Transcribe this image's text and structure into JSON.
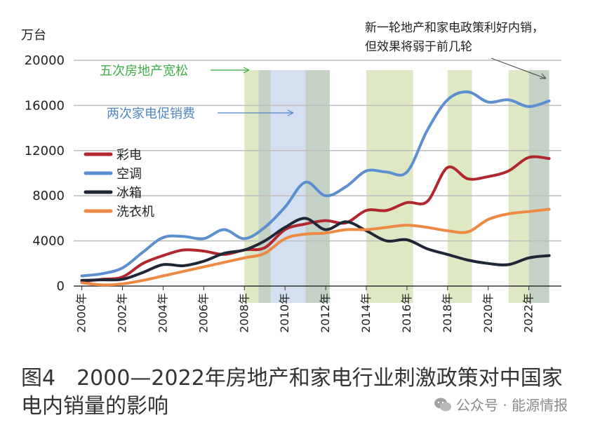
{
  "chart_data": {
    "type": "line",
    "y_unit_label": "万台",
    "ylim": [
      0,
      20000
    ],
    "y_ticks": [
      0,
      4000,
      8000,
      12000,
      16000,
      20000
    ],
    "x_tick_labels": [
      "2000年",
      "2002年",
      "2004年",
      "2006年",
      "2008年",
      "2010年",
      "2012年",
      "2014年",
      "2016年",
      "2018年",
      "2020年",
      "2022年"
    ],
    "x_tick_years": [
      2000,
      2002,
      2004,
      2006,
      2008,
      2010,
      2012,
      2014,
      2016,
      2018,
      2020,
      2022
    ],
    "xlim": [
      1999.6,
      2023.6
    ],
    "series": [
      {
        "name": "彩电",
        "color": "#b0272d",
        "x": [
          2000,
          2001,
          2002,
          2003,
          2004,
          2005,
          2006,
          2007,
          2008,
          2009,
          2010,
          2011,
          2012,
          2013,
          2014,
          2015,
          2016,
          2017,
          2018,
          2019,
          2020,
          2021,
          2022,
          2023
        ],
        "values": [
          400,
          600,
          800,
          2000,
          2700,
          3200,
          3100,
          2800,
          3200,
          3400,
          5000,
          5500,
          5800,
          5600,
          6700,
          6700,
          7400,
          7500,
          10500,
          9500,
          9700,
          10200,
          11400,
          11300
        ]
      },
      {
        "name": "空调",
        "color": "#5b8fd0",
        "x": [
          2000,
          2001,
          2002,
          2003,
          2004,
          2005,
          2006,
          2007,
          2008,
          2009,
          2010,
          2011,
          2012,
          2013,
          2014,
          2015,
          2016,
          2017,
          2018,
          2019,
          2020,
          2021,
          2022,
          2023
        ],
        "values": [
          900,
          1100,
          1600,
          3000,
          4300,
          4400,
          4200,
          5000,
          4200,
          5200,
          7000,
          9200,
          8000,
          8800,
          10200,
          10100,
          10100,
          13800,
          16500,
          17200,
          16300,
          16500,
          15900,
          16400
        ]
      },
      {
        "name": "冰箱",
        "color": "#1f2737",
        "x": [
          2000,
          2001,
          2002,
          2003,
          2004,
          2005,
          2006,
          2007,
          2008,
          2009,
          2010,
          2011,
          2012,
          2013,
          2014,
          2015,
          2016,
          2017,
          2018,
          2019,
          2020,
          2021,
          2022,
          2023
        ],
        "values": [
          500,
          550,
          600,
          1200,
          1900,
          1800,
          2200,
          2900,
          3200,
          4000,
          5200,
          6000,
          5000,
          5700,
          4900,
          4000,
          4100,
          3300,
          2800,
          2300,
          2000,
          1900,
          2500,
          2700
        ]
      },
      {
        "name": "洗衣机",
        "color": "#ec8a44",
        "x": [
          2000,
          2001,
          2002,
          2003,
          2004,
          2005,
          2006,
          2007,
          2008,
          2009,
          2010,
          2011,
          2012,
          2013,
          2014,
          2015,
          2016,
          2017,
          2018,
          2019,
          2020,
          2021,
          2022,
          2023
        ],
        "values": [
          300,
          100,
          200,
          500,
          900,
          1300,
          1700,
          2100,
          2500,
          2900,
          4200,
          4600,
          4700,
          5000,
          5000,
          5200,
          5400,
          5200,
          4900,
          4800,
          5900,
          6400,
          6600,
          6800
        ]
      }
    ],
    "shaded_periods": [
      {
        "from": 2008.0,
        "to": 2008.7,
        "type": "real_estate"
      },
      {
        "from": 2008.7,
        "to": 2009.3,
        "type": "both"
      },
      {
        "from": 2009.3,
        "to": 2011.0,
        "type": "appliance"
      },
      {
        "from": 2011.0,
        "to": 2012.2,
        "type": "both"
      },
      {
        "from": 2014.0,
        "to": 2016.3,
        "type": "real_estate"
      },
      {
        "from": 2018.0,
        "to": 2019.2,
        "type": "real_estate"
      },
      {
        "from": 2021.0,
        "to": 2022.0,
        "type": "real_estate"
      },
      {
        "from": 2022.0,
        "to": 2023.0,
        "type": "both"
      }
    ],
    "period_colors": {
      "real_estate": "#dfe8c4",
      "appliance": "#d5dff2",
      "both": "#c4d2c6"
    },
    "annotations": {
      "real_estate": {
        "text": "五次房地产宽松",
        "color": "#3fae49"
      },
      "appliance": {
        "text": "两次家电促销费",
        "color": "#4f86c6"
      },
      "new_policy": {
        "lines": [
          "新一轮地产和家电政策利好内销，",
          "但效果将弱于前几轮"
        ],
        "color": "#222222"
      }
    }
  },
  "caption": "图4　2000—2022年房地产和家电行业刺激政策对中国家电内销量的影响",
  "watermark": "公众号 · 能源情报"
}
